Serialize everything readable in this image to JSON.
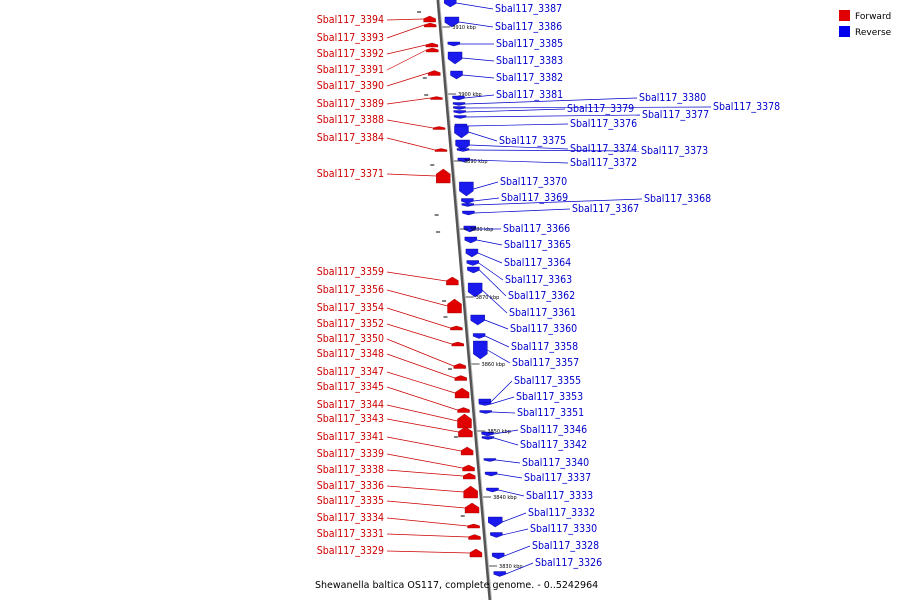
{
  "caption": "Shewanella baltica OS117, complete genome. - 0..5242964",
  "legend": [
    {
      "label": "Forward",
      "color": "#e00000"
    },
    {
      "label": "Reverse",
      "color": "#0000ee"
    }
  ],
  "ticks": [
    "3910 kbp",
    "3900 kbp",
    "3890 kbp",
    "3880 kbp",
    "3870 kbp",
    "3860 kbp",
    "3850 kbp",
    "3840 kbp",
    "3830 kbp"
  ],
  "forward_genes": [
    "Sbal117_3394",
    "Sbal117_3393",
    "Sbal117_3392",
    "Sbal117_3391",
    "Sbal117_3390",
    "Sbal117_3389",
    "Sbal117_3388",
    "Sbal117_3384",
    "Sbal117_3371",
    "Sbal117_3359",
    "Sbal117_3356",
    "Sbal117_3354",
    "Sbal117_3352",
    "Sbal117_3350",
    "Sbal117_3348",
    "Sbal117_3347",
    "Sbal117_3345",
    "Sbal117_3344",
    "Sbal117_3343",
    "Sbal117_3341",
    "Sbal117_3339",
    "Sbal117_3338",
    "Sbal117_3336",
    "Sbal117_3335",
    "Sbal117_3334",
    "Sbal117_3331",
    "Sbal117_3329"
  ],
  "reverse_genes": [
    "Sbal117_3387",
    "Sbal117_3386",
    "Sbal117_3385",
    "Sbal117_3383",
    "Sbal117_3382",
    "Sbal117_3381",
    "Sbal117_3380",
    "Sbal117_3378",
    "Sbal117_3379",
    "Sbal117_3377",
    "Sbal117_3376",
    "Sbal117_3375",
    "Sbal117_3374",
    "Sbal117_3373",
    "Sbal117_3372",
    "Sbal117_3370",
    "Sbal117_3369",
    "Sbal117_3368",
    "Sbal117_3367",
    "Sbal117_3366",
    "Sbal117_3365",
    "Sbal117_3364",
    "Sbal117_3363",
    "Sbal117_3362",
    "Sbal117_3361",
    "Sbal117_3360",
    "Sbal117_3358",
    "Sbal117_3357",
    "Sbal117_3355",
    "Sbal117_3353",
    "Sbal117_3351",
    "Sbal117_3346",
    "Sbal117_3342",
    "Sbal117_3340",
    "Sbal117_3337",
    "Sbal117_3333",
    "Sbal117_3332",
    "Sbal117_3330",
    "Sbal117_3328",
    "Sbal117_3326"
  ]
}
